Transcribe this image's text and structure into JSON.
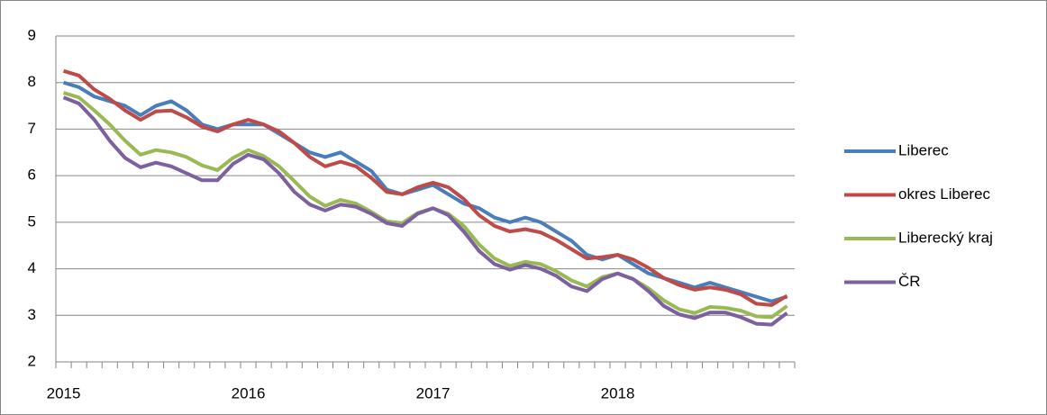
{
  "chart_data": {
    "type": "line",
    "categories": [
      "2015",
      null,
      null,
      null,
      null,
      null,
      null,
      null,
      null,
      null,
      null,
      null,
      "2016",
      null,
      null,
      null,
      null,
      null,
      null,
      null,
      null,
      null,
      null,
      null,
      "2017",
      null,
      null,
      null,
      null,
      null,
      null,
      null,
      null,
      null,
      null,
      null,
      "2018",
      null,
      null,
      null,
      null,
      null,
      null,
      null,
      null,
      null,
      null,
      null
    ],
    "ylim": [
      2,
      9
    ],
    "yticks": [
      2,
      3,
      4,
      5,
      6,
      7,
      8,
      9
    ],
    "grid": true,
    "legend": "right",
    "series": [
      {
        "name": "Liberec",
        "color": "#4a7ebb",
        "values": [
          8.0,
          7.9,
          7.7,
          7.6,
          7.5,
          7.3,
          7.5,
          7.6,
          7.4,
          7.1,
          7.0,
          7.1,
          7.1,
          7.1,
          6.9,
          6.7,
          6.5,
          6.4,
          6.5,
          6.3,
          6.1,
          5.7,
          5.6,
          5.7,
          5.8,
          5.6,
          5.4,
          5.3,
          5.1,
          5.0,
          5.1,
          5.0,
          4.8,
          4.6,
          4.3,
          4.2,
          4.3,
          4.1,
          3.9,
          3.8,
          3.7,
          3.6,
          3.7,
          3.6,
          3.5,
          3.4,
          3.3,
          3.4
        ]
      },
      {
        "name": "okres Liberec",
        "color": "#be4b48",
        "values": [
          8.25,
          8.15,
          7.85,
          7.65,
          7.4,
          7.2,
          7.38,
          7.4,
          7.25,
          7.05,
          6.95,
          7.1,
          7.2,
          7.1,
          6.95,
          6.7,
          6.4,
          6.2,
          6.3,
          6.2,
          5.95,
          5.65,
          5.6,
          5.75,
          5.85,
          5.75,
          5.5,
          5.15,
          4.92,
          4.8,
          4.85,
          4.78,
          4.62,
          4.42,
          4.22,
          4.25,
          4.3,
          4.2,
          4.02,
          3.8,
          3.65,
          3.55,
          3.6,
          3.55,
          3.45,
          3.25,
          3.22,
          3.42
        ]
      },
      {
        "name": "Liberecký kraj",
        "color": "#98b954",
        "values": [
          7.78,
          7.68,
          7.4,
          7.1,
          6.75,
          6.45,
          6.55,
          6.5,
          6.4,
          6.22,
          6.12,
          6.38,
          6.55,
          6.42,
          6.2,
          5.88,
          5.55,
          5.35,
          5.48,
          5.4,
          5.22,
          5.02,
          4.98,
          5.2,
          5.3,
          5.18,
          4.92,
          4.52,
          4.22,
          4.06,
          4.15,
          4.1,
          3.95,
          3.75,
          3.62,
          3.82,
          3.9,
          3.78,
          3.58,
          3.32,
          3.13,
          3.05,
          3.18,
          3.16,
          3.1,
          2.98,
          2.96,
          3.2
        ]
      },
      {
        "name": "ČR",
        "color": "#7d60a0",
        "values": [
          7.68,
          7.55,
          7.2,
          6.75,
          6.38,
          6.18,
          6.28,
          6.2,
          6.05,
          5.9,
          5.9,
          6.25,
          6.45,
          6.35,
          6.05,
          5.65,
          5.38,
          5.25,
          5.38,
          5.33,
          5.18,
          4.98,
          4.92,
          5.18,
          5.3,
          5.15,
          4.8,
          4.38,
          4.1,
          3.98,
          4.08,
          4.0,
          3.85,
          3.62,
          3.52,
          3.78,
          3.9,
          3.78,
          3.52,
          3.2,
          3.02,
          2.94,
          3.06,
          3.06,
          2.96,
          2.82,
          2.8,
          3.05
        ]
      }
    ]
  }
}
